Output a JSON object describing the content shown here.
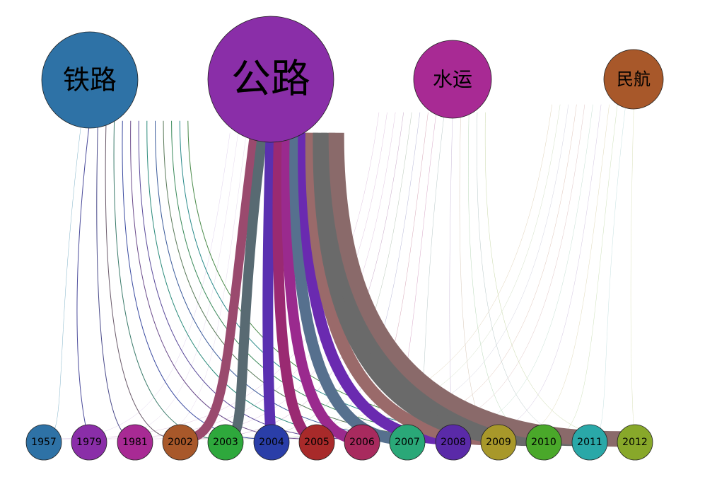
{
  "diagram": {
    "modes": [
      {
        "id": "rail",
        "label": "铁路",
        "color": "#2e72a6"
      },
      {
        "id": "road",
        "label": "公路",
        "color": "#8a2ea8"
      },
      {
        "id": "water",
        "label": "水运",
        "color": "#a82a94"
      },
      {
        "id": "air",
        "label": "民航",
        "color": "#a8582a"
      }
    ],
    "years": [
      {
        "id": "y1957",
        "label": "1957",
        "color": "#2e72a6"
      },
      {
        "id": "y1979",
        "label": "1979",
        "color": "#8a2ea8"
      },
      {
        "id": "y1981",
        "label": "1981",
        "color": "#a82a94"
      },
      {
        "id": "y2002",
        "label": "2002",
        "color": "#a8582a"
      },
      {
        "id": "y2003",
        "label": "2003",
        "color": "#2ea83c"
      },
      {
        "id": "y2004",
        "label": "2004",
        "color": "#2a3ea8"
      },
      {
        "id": "y2005",
        "label": "2005",
        "color": "#a82a2a"
      },
      {
        "id": "y2006",
        "label": "2006",
        "color": "#a82a5e"
      },
      {
        "id": "y2007",
        "label": "2007",
        "color": "#2aa878"
      },
      {
        "id": "y2008",
        "label": "2008",
        "color": "#5a2aa8"
      },
      {
        "id": "y2009",
        "label": "2009",
        "color": "#a8982a"
      },
      {
        "id": "y2010",
        "label": "2010",
        "color": "#4aa82a"
      },
      {
        "id": "y2011",
        "label": "2011",
        "color": "#2aa8a8"
      },
      {
        "id": "y2012",
        "label": "2012",
        "color": "#88a82a"
      }
    ],
    "links": [
      {
        "from": "rail",
        "to": "y1957",
        "weight": 0.5,
        "color": "#7fb2c8"
      },
      {
        "from": "rail",
        "to": "y1979",
        "weight": 1.0,
        "color": "#4a4a9a"
      },
      {
        "from": "rail",
        "to": "y1981",
        "weight": 1.0,
        "color": "#4a4a8a"
      },
      {
        "from": "rail",
        "to": "y2002",
        "weight": 1.0,
        "color": "#6a5a6a"
      },
      {
        "from": "rail",
        "to": "y2003",
        "weight": 1.0,
        "color": "#3a7a6a"
      },
      {
        "from": "rail",
        "to": "y2004",
        "weight": 1.0,
        "color": "#3a4aa0"
      },
      {
        "from": "rail",
        "to": "y2005",
        "weight": 1.0,
        "color": "#6a4a8a"
      },
      {
        "from": "rail",
        "to": "y2006",
        "weight": 1.0,
        "color": "#5a4a9a"
      },
      {
        "from": "rail",
        "to": "y2007",
        "weight": 1.0,
        "color": "#2a8a7a"
      },
      {
        "from": "rail",
        "to": "y2008",
        "weight": 1.0,
        "color": "#3a5a9a"
      },
      {
        "from": "rail",
        "to": "y2009",
        "weight": 1.0,
        "color": "#5a7a5a"
      },
      {
        "from": "rail",
        "to": "y2010",
        "weight": 1.0,
        "color": "#3a8a5a"
      },
      {
        "from": "rail",
        "to": "y2011",
        "weight": 1.0,
        "color": "#2a8a8a"
      },
      {
        "from": "rail",
        "to": "y2012",
        "weight": 1.0,
        "color": "#4a8a4a"
      },
      {
        "from": "road",
        "to": "y1957",
        "weight": 0.4,
        "color": "#d8c8e8"
      },
      {
        "from": "road",
        "to": "y1979",
        "weight": 0.4,
        "color": "#e0d0e8"
      },
      {
        "from": "road",
        "to": "y1981",
        "weight": 0.4,
        "color": "#e0d0e8"
      },
      {
        "from": "road",
        "to": "y2002",
        "weight": 13,
        "color": "#9a4a6e"
      },
      {
        "from": "road",
        "to": "y2003",
        "weight": 14,
        "color": "#586a72"
      },
      {
        "from": "road",
        "to": "y2004",
        "weight": 15,
        "color": "#5a30b0"
      },
      {
        "from": "road",
        "to": "y2005",
        "weight": 15,
        "color": "#9a2a72"
      },
      {
        "from": "road",
        "to": "y2006",
        "weight": 15,
        "color": "#9a2a8e"
      },
      {
        "from": "road",
        "to": "y2007",
        "weight": 16,
        "color": "#56708e"
      },
      {
        "from": "road",
        "to": "y2008",
        "weight": 16,
        "color": "#6a2ab0"
      },
      {
        "from": "road",
        "to": "y2009",
        "weight": 18,
        "color": "#9a6a6a"
      },
      {
        "from": "road",
        "to": "y2010",
        "weight": 20,
        "color": "#6a6a6a"
      },
      {
        "from": "road",
        "to": "y2011",
        "weight": 20,
        "color": "#6a6a6a"
      },
      {
        "from": "road",
        "to": "y2012",
        "weight": 22,
        "color": "#8a6a6a"
      },
      {
        "from": "water",
        "to": "y1957",
        "weight": 0.4,
        "color": "#d8b8d8"
      },
      {
        "from": "water",
        "to": "y1979",
        "weight": 0.4,
        "color": "#d8b8d8"
      },
      {
        "from": "water",
        "to": "y1981",
        "weight": 0.4,
        "color": "#d8b8d8"
      },
      {
        "from": "water",
        "to": "y2002",
        "weight": 0.5,
        "color": "#c8a8c8"
      },
      {
        "from": "water",
        "to": "y2003",
        "weight": 0.5,
        "color": "#b8c8b8"
      },
      {
        "from": "water",
        "to": "y2004",
        "weight": 0.5,
        "color": "#b8b8d8"
      },
      {
        "from": "water",
        "to": "y2005",
        "weight": 0.5,
        "color": "#d8a8b8"
      },
      {
        "from": "water",
        "to": "y2006",
        "weight": 0.5,
        "color": "#d8a8c8"
      },
      {
        "from": "water",
        "to": "y2007",
        "weight": 0.5,
        "color": "#b8c8c8"
      },
      {
        "from": "water",
        "to": "y2008",
        "weight": 0.5,
        "color": "#c8b8d8"
      },
      {
        "from": "water",
        "to": "y2009",
        "weight": 0.5,
        "color": "#d8c8b8"
      },
      {
        "from": "water",
        "to": "y2010",
        "weight": 0.5,
        "color": "#b8d8b8"
      },
      {
        "from": "water",
        "to": "y2011",
        "weight": 0.5,
        "color": "#b8c8c8"
      },
      {
        "from": "water",
        "to": "y2012",
        "weight": 0.5,
        "color": "#c8d8a8"
      },
      {
        "from": "air",
        "to": "y2002",
        "weight": 0.4,
        "color": "#d8c8a8"
      },
      {
        "from": "air",
        "to": "y2003",
        "weight": 0.4,
        "color": "#c8d8b8"
      },
      {
        "from": "air",
        "to": "y2004",
        "weight": 0.4,
        "color": "#c8c8d8"
      },
      {
        "from": "air",
        "to": "y2005",
        "weight": 0.4,
        "color": "#d8b8a8"
      },
      {
        "from": "air",
        "to": "y2006",
        "weight": 0.4,
        "color": "#d8b8b8"
      },
      {
        "from": "air",
        "to": "y2007",
        "weight": 0.4,
        "color": "#b8d8c8"
      },
      {
        "from": "air",
        "to": "y2008",
        "weight": 0.4,
        "color": "#c8b8d8"
      },
      {
        "from": "air",
        "to": "y2009",
        "weight": 0.4,
        "color": "#d8d0a8"
      },
      {
        "from": "air",
        "to": "y2010",
        "weight": 0.4,
        "color": "#c0d8a8"
      },
      {
        "from": "air",
        "to": "y2011",
        "weight": 0.4,
        "color": "#b8d8d8"
      },
      {
        "from": "air",
        "to": "y2012",
        "weight": 0.4,
        "color": "#d0d8a8"
      }
    ]
  }
}
